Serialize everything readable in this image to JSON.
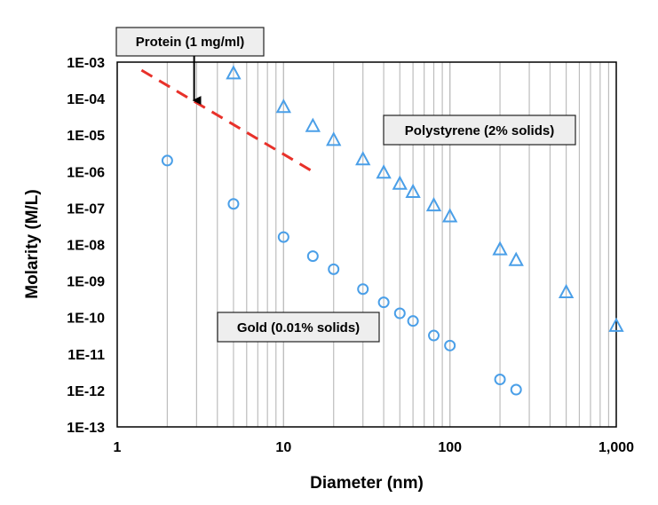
{
  "chart_data": {
    "type": "scatter",
    "xscale": "log",
    "yscale": "log",
    "xlim": [
      1,
      1000
    ],
    "ylim": [
      1e-13,
      0.001
    ],
    "xlabel": "Diameter (nm)",
    "ylabel": "Molarity (M/L)",
    "x_tick_labels": [
      {
        "value": 1,
        "label": "1"
      },
      {
        "value": 10,
        "label": "10"
      },
      {
        "value": 100,
        "label": "100"
      },
      {
        "value": 1000,
        "label": "1,000"
      }
    ],
    "y_tick_labels": [
      {
        "value": 0.001,
        "label": "1E-03"
      },
      {
        "value": 0.0001,
        "label": "1E-04"
      },
      {
        "value": 1e-05,
        "label": "1E-05"
      },
      {
        "value": 1e-06,
        "label": "1E-06"
      },
      {
        "value": 1e-07,
        "label": "1E-07"
      },
      {
        "value": 1e-08,
        "label": "1E-08"
      },
      {
        "value": 1e-09,
        "label": "1E-09"
      },
      {
        "value": 1e-10,
        "label": "1E-10"
      },
      {
        "value": 1e-11,
        "label": "1E-11"
      },
      {
        "value": 1e-12,
        "label": "1E-12"
      },
      {
        "value": 1e-13,
        "label": "1E-13"
      }
    ],
    "vertical_gridlines": true,
    "series": [
      {
        "name": "Polystyrene (2% solids)",
        "marker": "triangle",
        "color": "#4a9fe8",
        "x": [
          5,
          10,
          15,
          20,
          30,
          40,
          50,
          60,
          80,
          100,
          200,
          250,
          500,
          1000
        ],
        "y": [
          0.0005,
          6e-05,
          1.8e-05,
          7.5e-06,
          2.2e-06,
          9.5e-07,
          4.7e-07,
          2.8e-07,
          1.2e-07,
          6e-08,
          7.5e-09,
          3.8e-09,
          5e-10,
          6e-11
        ]
      },
      {
        "name": "Gold (0.01% solids)",
        "marker": "circle",
        "color": "#4a9fe8",
        "x": [
          2,
          5,
          10,
          15,
          20,
          30,
          40,
          50,
          60,
          80,
          100,
          200,
          250
        ],
        "y": [
          2e-06,
          1.3e-07,
          1.6e-08,
          4.8e-09,
          2.1e-09,
          6e-10,
          2.6e-10,
          1.3e-10,
          8e-11,
          3.2e-11,
          1.7e-11,
          2e-12,
          1.05e-12
        ]
      },
      {
        "name": "Protein (1 mg/ml)",
        "marker": "dashed-line",
        "color": "#e8312a",
        "x": [
          1.4,
          15
        ],
        "y": [
          0.0006,
          1e-06
        ]
      }
    ],
    "annotations": [
      {
        "text": "Protein (1 mg/ml)",
        "arrow_to": {
          "x": 2.9,
          "y": 8e-05
        }
      },
      {
        "text": "Polystyrene (2% solids)"
      },
      {
        "text": "Gold (0.01% solids)"
      }
    ]
  }
}
